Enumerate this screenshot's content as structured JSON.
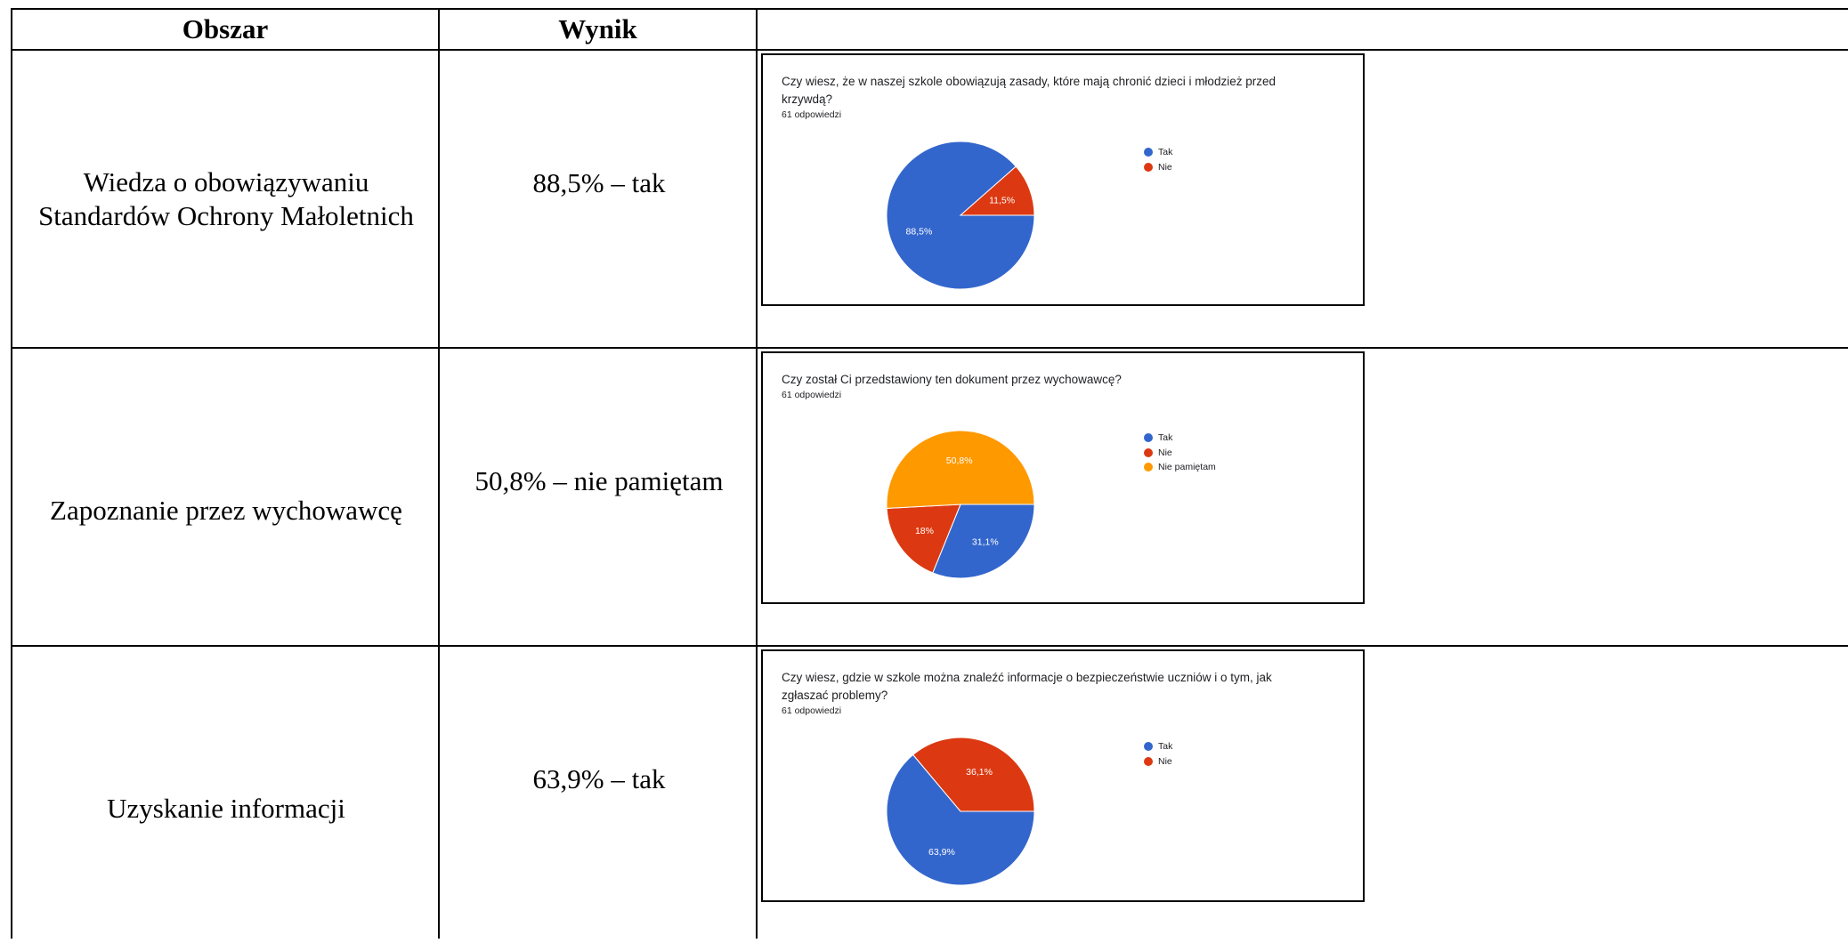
{
  "header": {
    "col1": "Obszar",
    "col2": "Wynik",
    "col3": ""
  },
  "rows": [
    {
      "area_lines": [
        "Wiedza o obowiązywaniu",
        "Standardów Ochrony Małoletnich"
      ],
      "result": "88,5% – tak",
      "question_lines": [
        "Czy wiesz, że w naszej szkole obowiązują zasady, które mają chronić dzieci i młodzież przed",
        "krzywdą?"
      ],
      "responses": "61 odpowiedzi"
    },
    {
      "area_lines": [
        "Zapoznanie przez wychowawcę"
      ],
      "result": "50,8% – nie pamiętam",
      "question_lines": [
        "Czy został Ci przedstawiony ten dokument przez wychowawcę?"
      ],
      "responses": "61 odpowiedzi"
    },
    {
      "area_lines": [
        "Uzyskanie informacji"
      ],
      "result": "63,9% – tak",
      "question_lines": [
        "Czy wiesz, gdzie w szkole można znaleźć informacje o bezpieczeństwie uczniów i o tym, jak",
        "zgłaszać problemy?"
      ],
      "responses": "61 odpowiedzi"
    }
  ],
  "chart_data": [
    {
      "type": "pie",
      "title": "Czy wiesz, że w naszej szkole obowiązują zasady, które mają chronić dzieci i młodzież przed krzywdą?",
      "categories": [
        "Tak",
        "Nie"
      ],
      "values": [
        88.5,
        11.5
      ],
      "labels": [
        "88,5%",
        "11,5%"
      ],
      "colors": [
        "#3366cc",
        "#dc3912"
      ],
      "legend": "right"
    },
    {
      "type": "pie",
      "title": "Czy został Ci przedstawiony ten dokument przez wychowawcę?",
      "categories": [
        "Tak",
        "Nie",
        "Nie pamiętam"
      ],
      "values": [
        31.1,
        18,
        50.8
      ],
      "labels": [
        "31,1%",
        "18%",
        "50,8%"
      ],
      "colors": [
        "#3366cc",
        "#dc3912",
        "#ff9900"
      ],
      "legend": "right"
    },
    {
      "type": "pie",
      "title": "Czy wiesz, gdzie w szkole można znaleźć informacje o bezpieczeństwie uczniów i o tym, jak zgłaszać problemy?",
      "categories": [
        "Tak",
        "Nie"
      ],
      "values": [
        63.9,
        36.1
      ],
      "labels": [
        "63,9%",
        "36,1%"
      ],
      "colors": [
        "#3366cc",
        "#dc3912"
      ],
      "legend": "right"
    }
  ]
}
